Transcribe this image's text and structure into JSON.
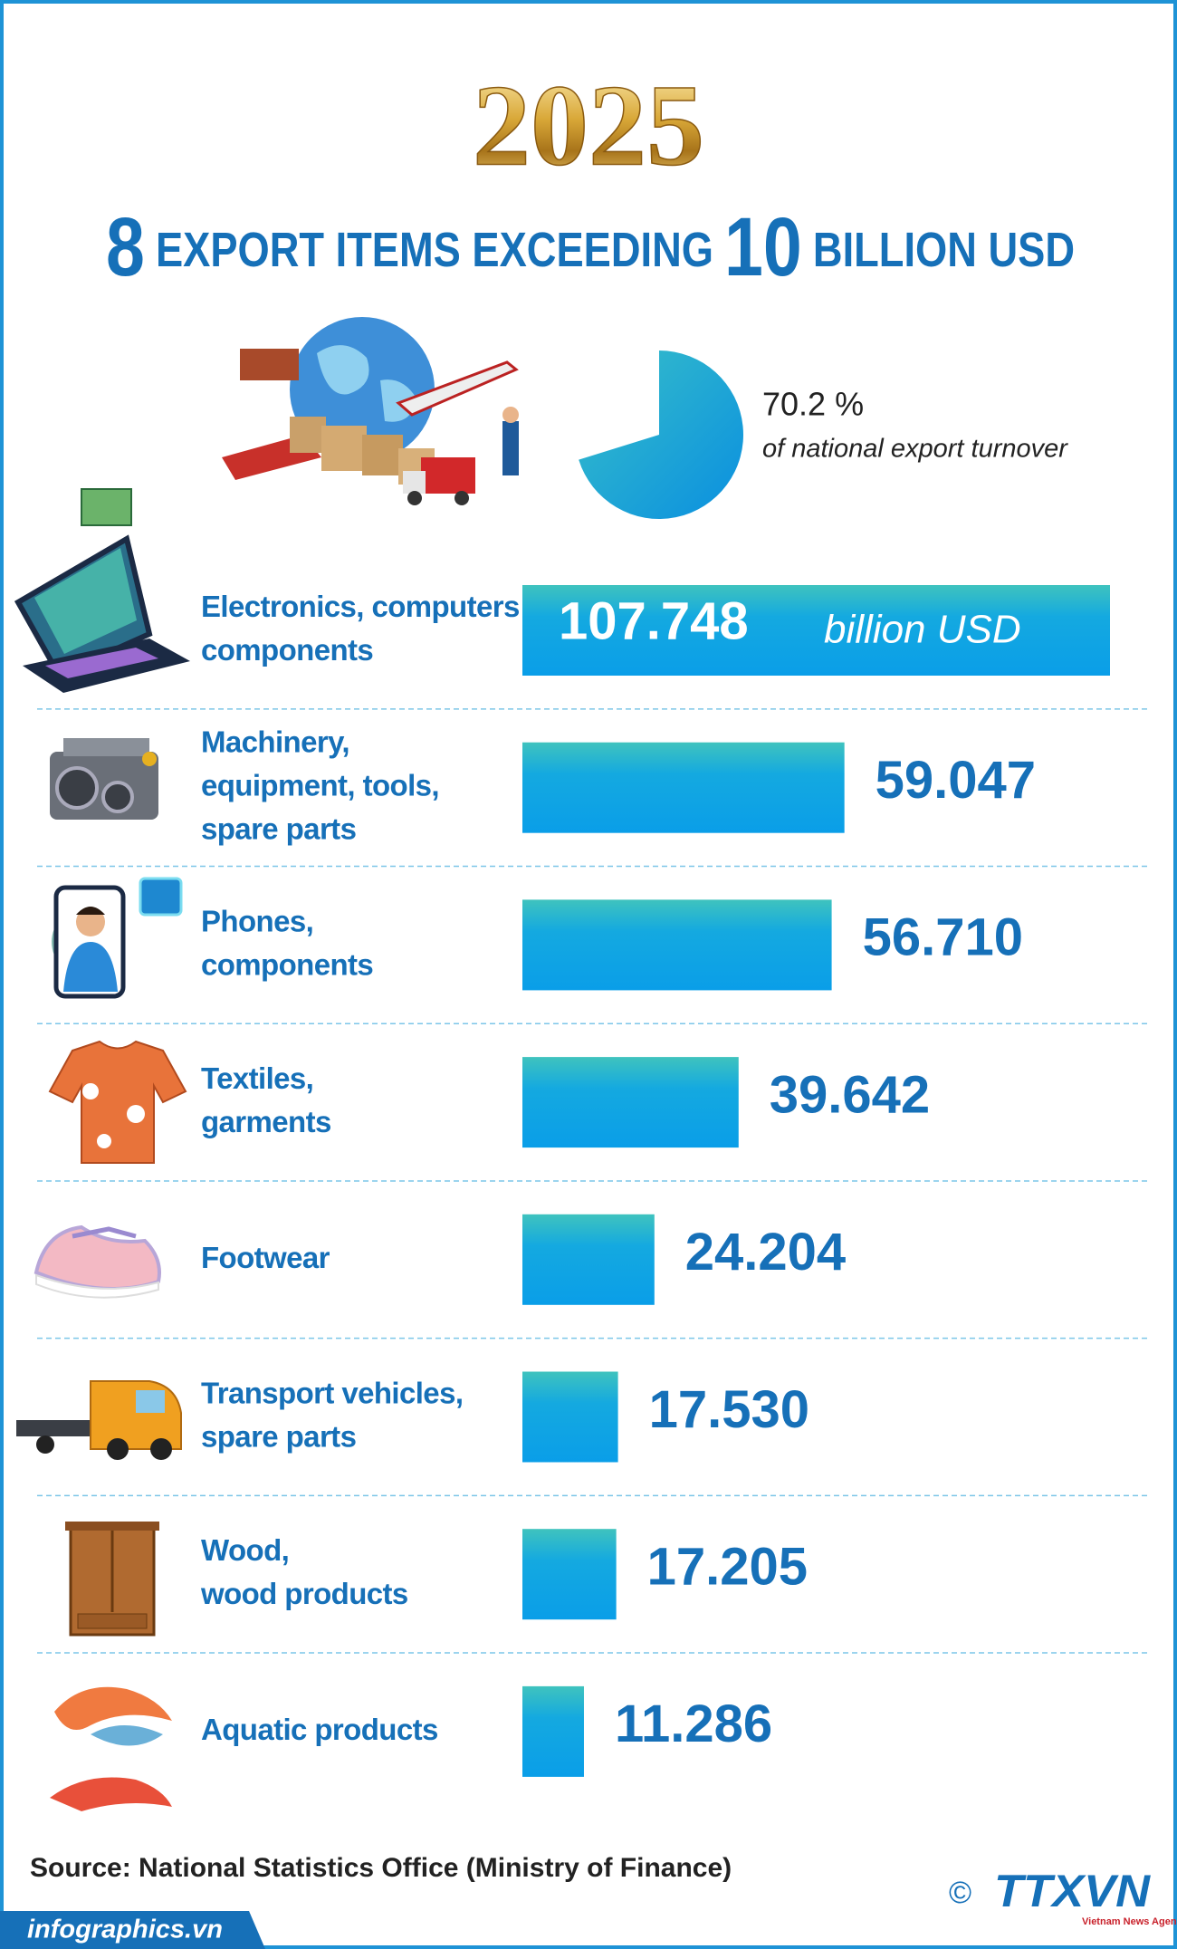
{
  "chart_data": {
    "type": "bar",
    "year": "2025",
    "title_parts": [
      "8",
      "EXPORT ITEMS EXCEEDING",
      "10",
      "BILLION USD"
    ],
    "share": {
      "values": [
        70.2
      ],
      "value_labels": [
        "70.2 %"
      ],
      "caption": "of national export turnover"
    },
    "unit": "billion USD",
    "categories": [
      "Electronics, computers\ncomponents",
      "Machinery,\nequipment, tools,\nspare parts",
      "Phones,\ncomponents",
      "Textiles,\ngarments",
      "Footwear",
      "Transport vehicles,\nspare parts",
      "Wood,\nwood products",
      "Aquatic products"
    ],
    "values": [
      107.748,
      59.047,
      56.71,
      39.642,
      24.204,
      17.53,
      17.205,
      11.286
    ],
    "value_labels": [
      "107.748",
      "59.047",
      "56.710",
      "39.642",
      "24.204",
      "17.530",
      "17.205",
      "11.286"
    ],
    "color": "#0aa0e6",
    "source": "Source: National Statistics Office (Ministry of Finance)",
    "website": "infographics.vn",
    "copyright": "©",
    "logo": "TTXVN",
    "logo_subtitle": "Vietnam News Agency"
  }
}
